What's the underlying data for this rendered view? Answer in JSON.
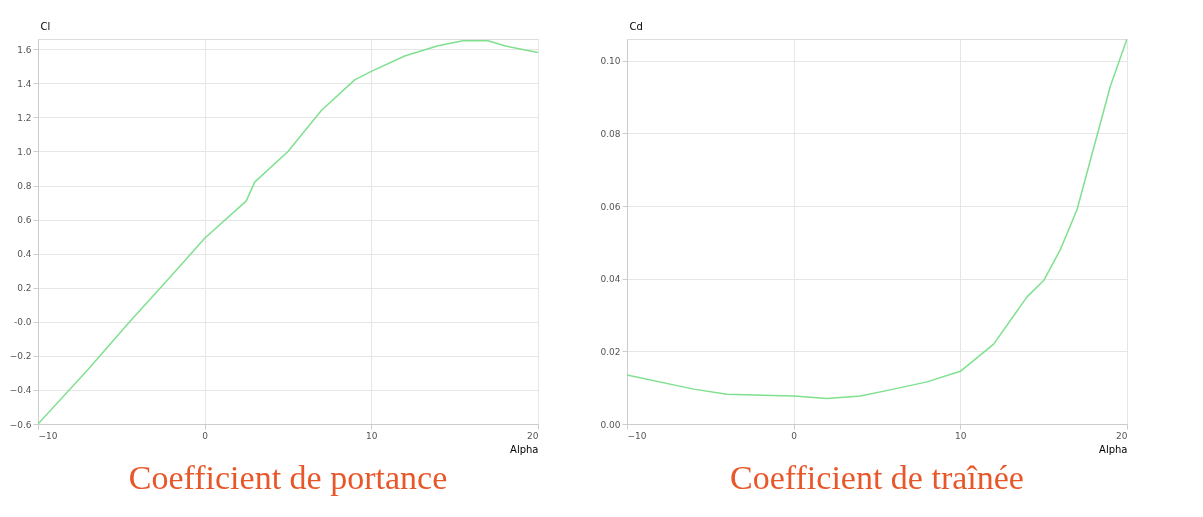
{
  "chart_data": [
    {
      "type": "line",
      "title": "Coefficient de portance",
      "xlabel": "Alpha",
      "ylabel": "Cl",
      "grid": true,
      "x": [
        -10,
        -7,
        -4.5,
        -2,
        0,
        2.5,
        3,
        5,
        7,
        9,
        10,
        12,
        14,
        15.5,
        17,
        18,
        19,
        20
      ],
      "series": [
        {
          "color": "#7fe08f",
          "values": [
            -0.6,
            -0.28,
            0,
            0.27,
            0.49,
            0.71,
            0.82,
            1.0,
            1.24,
            1.42,
            1.47,
            1.56,
            1.62,
            1.65,
            1.65,
            1.62,
            1.6,
            1.58
          ]
        }
      ],
      "xlim": [
        -10,
        20
      ],
      "ylim": [
        -0.6,
        1.66
      ],
      "xticks": [
        -10,
        0,
        10,
        20
      ],
      "yticks": [
        -0.6,
        -0.4,
        -0.2,
        {
          "value": 0,
          "label": "-0.0"
        },
        0.2,
        0.4,
        0.6,
        0.8,
        {
          "value": 1,
          "label": "1.0"
        },
        1.2,
        1.4,
        1.6
      ]
    },
    {
      "type": "line",
      "title": "Coefficient de traînée",
      "xlabel": "Alpha",
      "ylabel": "Cd",
      "grid": true,
      "x": [
        -10,
        -6,
        -4,
        0,
        2,
        4,
        6,
        8,
        10,
        12,
        14,
        15,
        16,
        17,
        18,
        19,
        20
      ],
      "series": [
        {
          "color": "#7fe08f",
          "values": [
            0.0135,
            0.0096,
            0.0082,
            0.0077,
            0.007,
            0.0077,
            0.0096,
            0.0116,
            0.0145,
            0.022,
            0.035,
            0.0395,
            0.048,
            0.059,
            0.076,
            0.093,
            0.106
          ]
        }
      ],
      "xlim": [
        -10,
        20
      ],
      "ylim": [
        0,
        0.106
      ],
      "xticks": [
        -10,
        0,
        10,
        20
      ],
      "yticks": [
        {
          "value": 0,
          "label": "0.00"
        },
        0.02,
        0.04,
        0.06,
        0.08,
        {
          "value": 0.1,
          "label": "0.10"
        }
      ]
    }
  ]
}
